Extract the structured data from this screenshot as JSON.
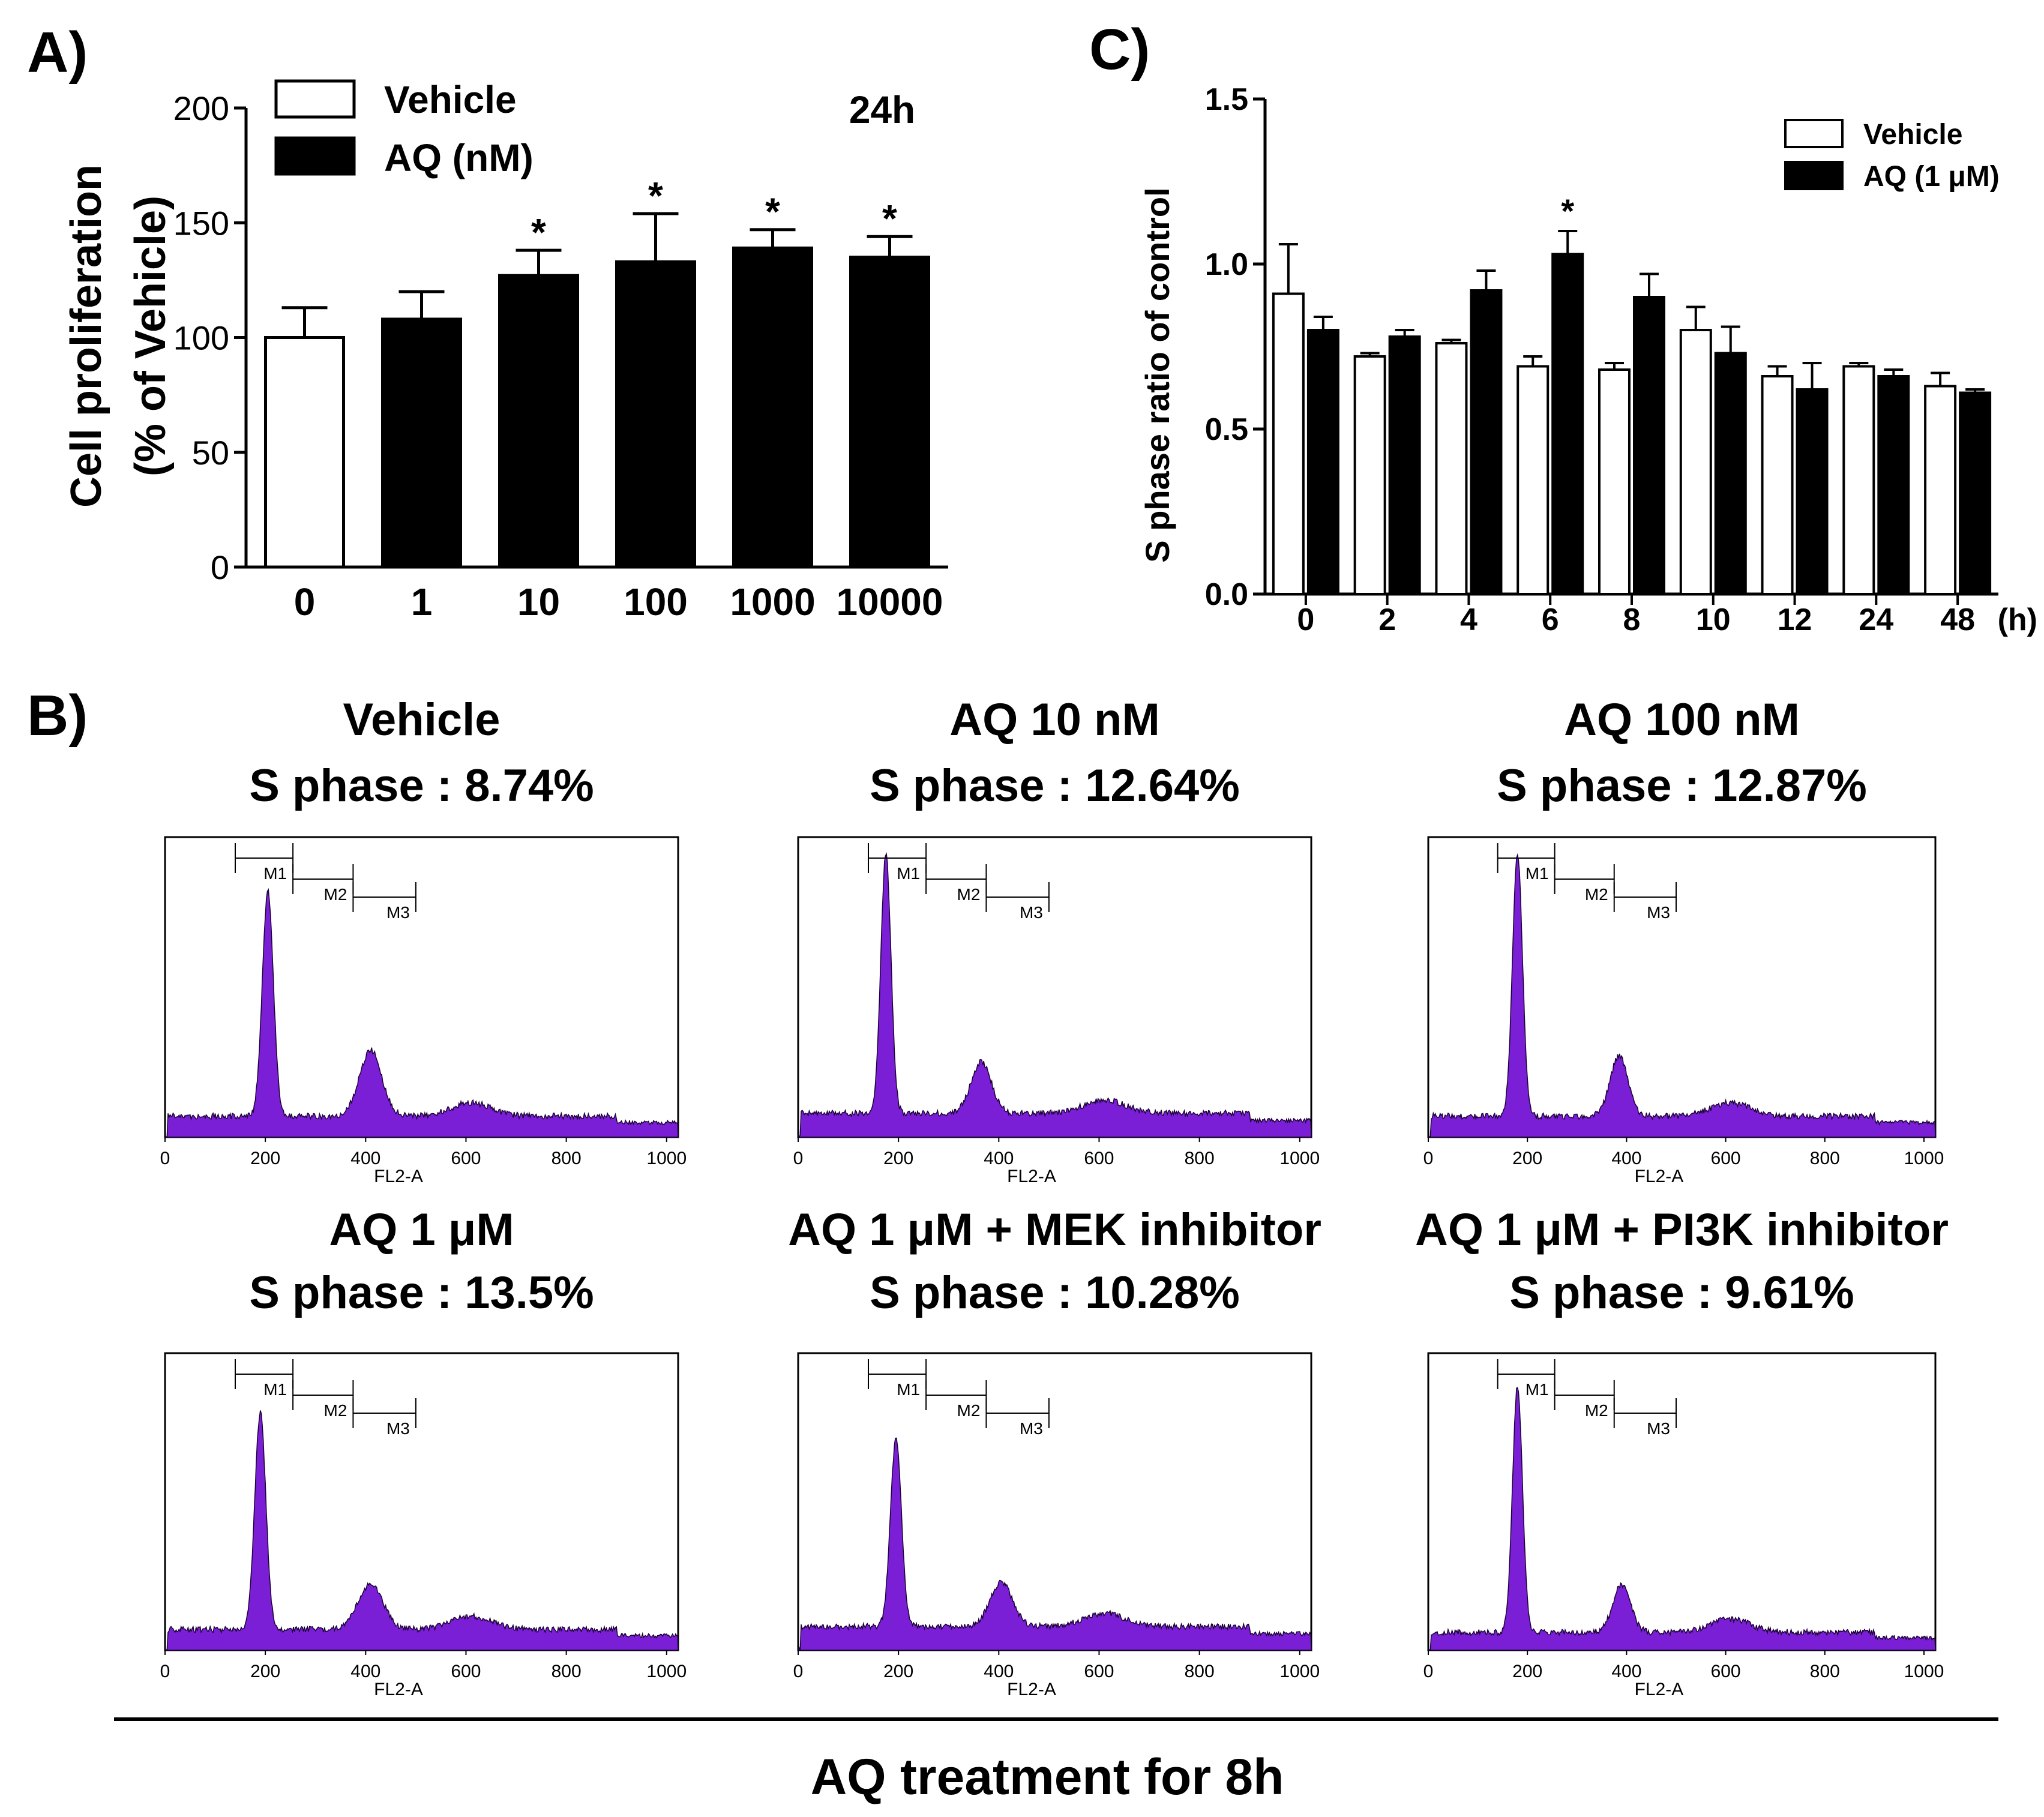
{
  "panel_labels": {
    "a": "A)",
    "b": "B)",
    "c": "C)"
  },
  "colors": {
    "hist_fill": "#7a1fd6",
    "bar_filled": "#000000",
    "bar_open": "#ffffff",
    "axis": "#000000"
  },
  "chart_data": [
    {
      "id": "A",
      "type": "bar",
      "title": "24h",
      "xlabel": "",
      "ylabel_line1": "Cell proliferation",
      "ylabel_line2": "(% of Vehicle)",
      "categories": [
        "0",
        "1",
        "10",
        "100",
        "1000",
        "10000"
      ],
      "values": [
        100,
        108,
        127,
        133,
        139,
        135
      ],
      "errors": [
        13,
        12,
        11,
        21,
        8,
        9
      ],
      "fill": [
        "open",
        "filled",
        "filled",
        "filled",
        "filled",
        "filled"
      ],
      "significance": [
        "",
        "",
        "*",
        "*",
        "*",
        "*"
      ],
      "yticks": [
        "0",
        "50",
        "100",
        "150",
        "200"
      ],
      "ylim": [
        0,
        200
      ],
      "legend": [
        {
          "name": "Vehicle",
          "style": "open"
        },
        {
          "name": "AQ (nM)",
          "style": "filled"
        }
      ]
    },
    {
      "id": "C",
      "type": "bar",
      "ylabel": "S phase ratio of control",
      "xunit": "(h)",
      "categories": [
        "0",
        "2",
        "4",
        "6",
        "8",
        "10",
        "12",
        "24",
        "48"
      ],
      "series": [
        {
          "name": "Vehicle",
          "style": "open",
          "values": [
            0.91,
            0.72,
            0.76,
            0.69,
            0.68,
            0.8,
            0.66,
            0.69,
            0.63
          ],
          "errors": [
            0.15,
            0.01,
            0.01,
            0.03,
            0.02,
            0.07,
            0.03,
            0.01,
            0.04
          ]
        },
        {
          "name": "AQ (1 μM)",
          "style": "filled",
          "values": [
            0.8,
            0.78,
            0.92,
            1.03,
            0.9,
            0.73,
            0.62,
            0.66,
            0.61
          ],
          "errors": [
            0.04,
            0.02,
            0.06,
            0.07,
            0.07,
            0.08,
            0.08,
            0.02,
            0.01
          ]
        }
      ],
      "significance": {
        "series": 1,
        "index": 3,
        "label": "*"
      },
      "yticks": [
        "0.0",
        "0.5",
        "1.0",
        "1.5"
      ],
      "ylim": [
        0,
        1.5
      ],
      "legend": [
        {
          "name": "Vehicle",
          "style": "open"
        },
        {
          "name": "AQ (1 μM)",
          "style": "filled"
        }
      ]
    },
    {
      "id": "B",
      "type": "area",
      "footer": "AQ treatment for 8h",
      "xlabel": "FL2-A",
      "xticks": [
        "0",
        "200",
        "400",
        "600",
        "800",
        "1000"
      ],
      "xlim": [
        0,
        1023
      ],
      "markers": [
        "M1",
        "M2",
        "M3"
      ],
      "histograms": [
        {
          "title": "Vehicle",
          "s_phase": "S phase : 8.74%",
          "g1": 205,
          "g1_h": 0.75,
          "g2": 410,
          "g2_h": 0.22,
          "g1_w": 11,
          "g2_w": 22,
          "base": 0.07
        },
        {
          "title": "AQ 10 nM",
          "s_phase": "S phase : 12.64%",
          "g1": 175,
          "g1_h": 0.87,
          "g2": 365,
          "g2_h": 0.17,
          "g1_w": 10,
          "g2_w": 20,
          "base": 0.08
        },
        {
          "title": "AQ 100 nM",
          "s_phase": "S phase : 12.87%",
          "g1": 180,
          "g1_h": 0.88,
          "g2": 385,
          "g2_h": 0.2,
          "g1_w": 10,
          "g2_w": 18,
          "base": 0.07
        },
        {
          "title": "AQ 1 μM",
          "s_phase": "S phase : 13.5%",
          "g1": 190,
          "g1_h": 0.73,
          "g2": 410,
          "g2_h": 0.15,
          "g1_w": 11,
          "g2_w": 25,
          "base": 0.07
        },
        {
          "title": "AQ 1 μM + MEK inhibitor",
          "s_phase": "S phase : 10.28%",
          "g1": 195,
          "g1_h": 0.63,
          "g2": 405,
          "g2_h": 0.15,
          "g1_w": 11,
          "g2_w": 22,
          "base": 0.08
        },
        {
          "title": "AQ 1 μM + PI3K inhibitor",
          "s_phase": "S phase : 9.61%",
          "g1": 180,
          "g1_h": 0.83,
          "g2": 390,
          "g2_h": 0.16,
          "g1_w": 10,
          "g2_w": 18,
          "base": 0.06
        }
      ]
    }
  ]
}
